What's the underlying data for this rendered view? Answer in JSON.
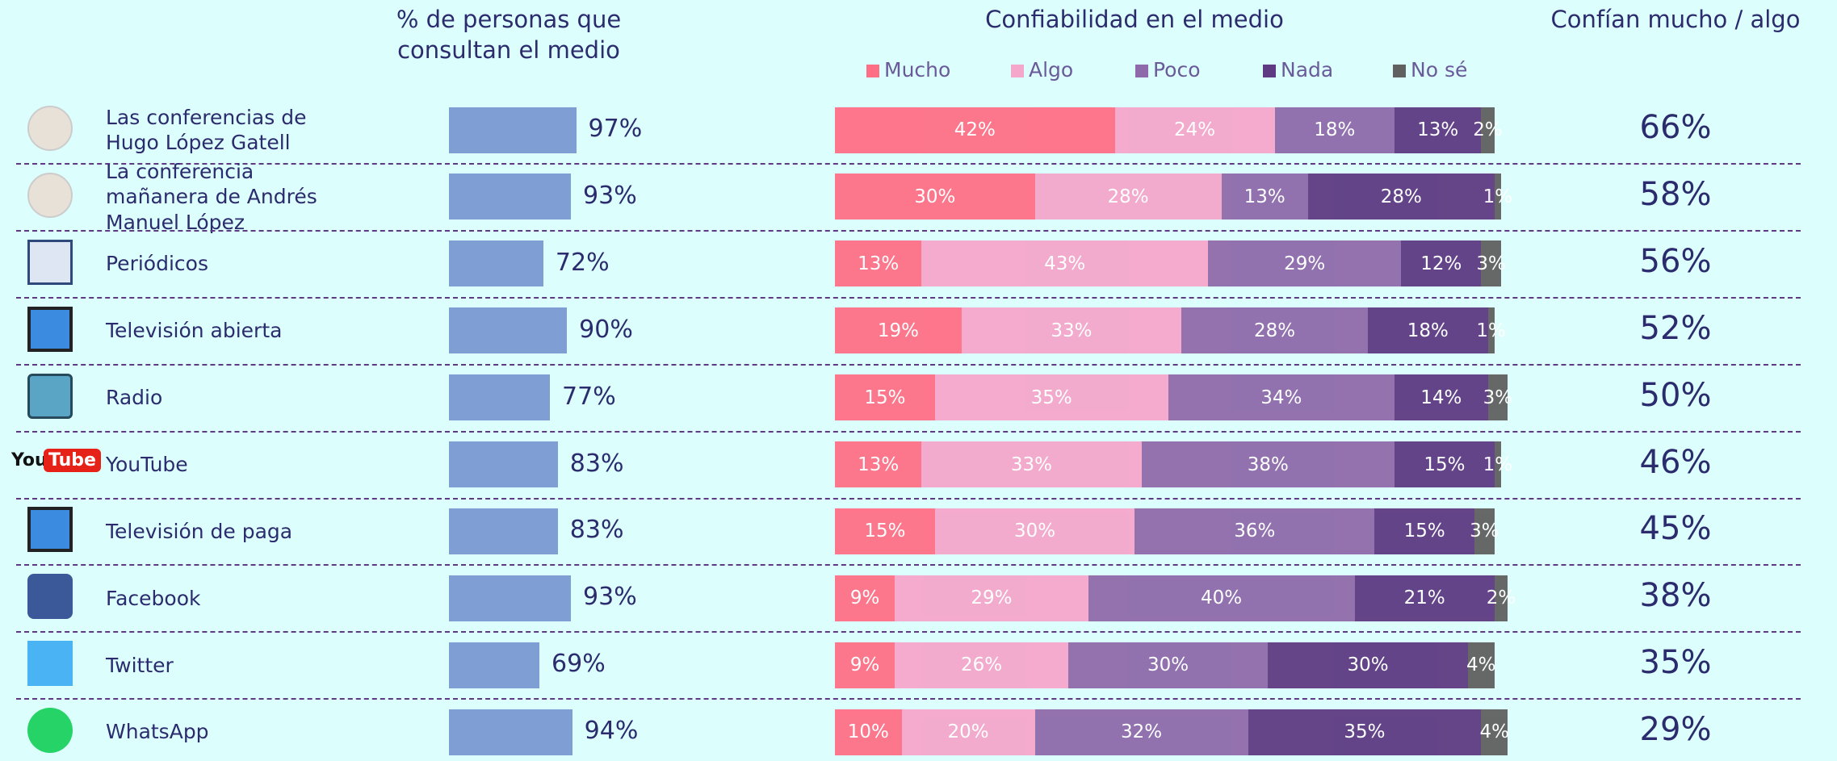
{
  "chart_data": [
    {
      "type": "bar",
      "title": "% de personas que consultan el medio",
      "categories": [
        "Las conferencias de Hugo López Gatell",
        "La conferencia mañanera de Andrés Manuel López",
        "Periódicos",
        "Televisión abierta",
        "Radio",
        "YouTube",
        "Televisión de paga",
        "Facebook",
        "Twitter",
        "WhatsApp"
      ],
      "values": [
        97,
        93,
        72,
        90,
        77,
        83,
        83,
        93,
        69,
        94
      ],
      "value_labels": [
        "97%",
        "93%",
        "72%",
        "90%",
        "77%",
        "83%",
        "83%",
        "93%",
        "69%",
        "94%"
      ],
      "color": "#7f9fd4"
    },
    {
      "type": "stacked_bar",
      "title": "Confiabilidad en el medio",
      "legend": "top",
      "series": [
        {
          "name": "Mucho",
          "color": "#fe6f86",
          "values": [
            42,
            30,
            13,
            19,
            15,
            13,
            15,
            9,
            9,
            10
          ],
          "value_labels": [
            "42%",
            "30%",
            "13%",
            "19%",
            "15%",
            "13%",
            "15%",
            "9%",
            "9%",
            "10%"
          ]
        },
        {
          "name": "Algo",
          "color": "#f4a6cb",
          "values": [
            24,
            28,
            43,
            33,
            35,
            33,
            30,
            29,
            26,
            20
          ],
          "value_labels": [
            "24%",
            "28%",
            "43%",
            "33%",
            "35%",
            "33%",
            "30%",
            "29%",
            "26%",
            "20%"
          ]
        },
        {
          "name": "Poco",
          "color": "#8e6aaa",
          "values": [
            18,
            13,
            29,
            28,
            34,
            38,
            36,
            40,
            30,
            32
          ],
          "value_labels": [
            "18%",
            "13%",
            "29%",
            "28%",
            "34%",
            "38%",
            "36%",
            "40%",
            "30%",
            "32%"
          ]
        },
        {
          "name": "Nada",
          "color": "#5e3a82",
          "values": [
            13,
            28,
            12,
            18,
            14,
            15,
            15,
            21,
            30,
            35
          ],
          "value_labels": [
            "13%",
            "28%",
            "12%",
            "18%",
            "14%",
            "15%",
            "15%",
            "21%",
            "30%",
            "35%"
          ]
        },
        {
          "name": "No sé",
          "color": "#606060",
          "values": [
            2,
            1,
            3,
            1,
            3,
            1,
            3,
            2,
            4,
            4
          ],
          "value_labels": [
            "2%",
            "1%",
            "3%",
            "1%",
            "3%",
            "1%",
            "3%",
            "2%",
            "4%",
            "4%"
          ]
        }
      ]
    },
    {
      "type": "text",
      "title": "Confían mucho / algo",
      "values": [
        66,
        58,
        56,
        52,
        50,
        46,
        45,
        38,
        35,
        29
      ],
      "value_labels": [
        "66%",
        "58%",
        "56%",
        "52%",
        "50%",
        "46%",
        "45%",
        "38%",
        "35%",
        "29%"
      ]
    }
  ],
  "youtube_logo": {
    "you": "You",
    "tube": "Tube"
  }
}
